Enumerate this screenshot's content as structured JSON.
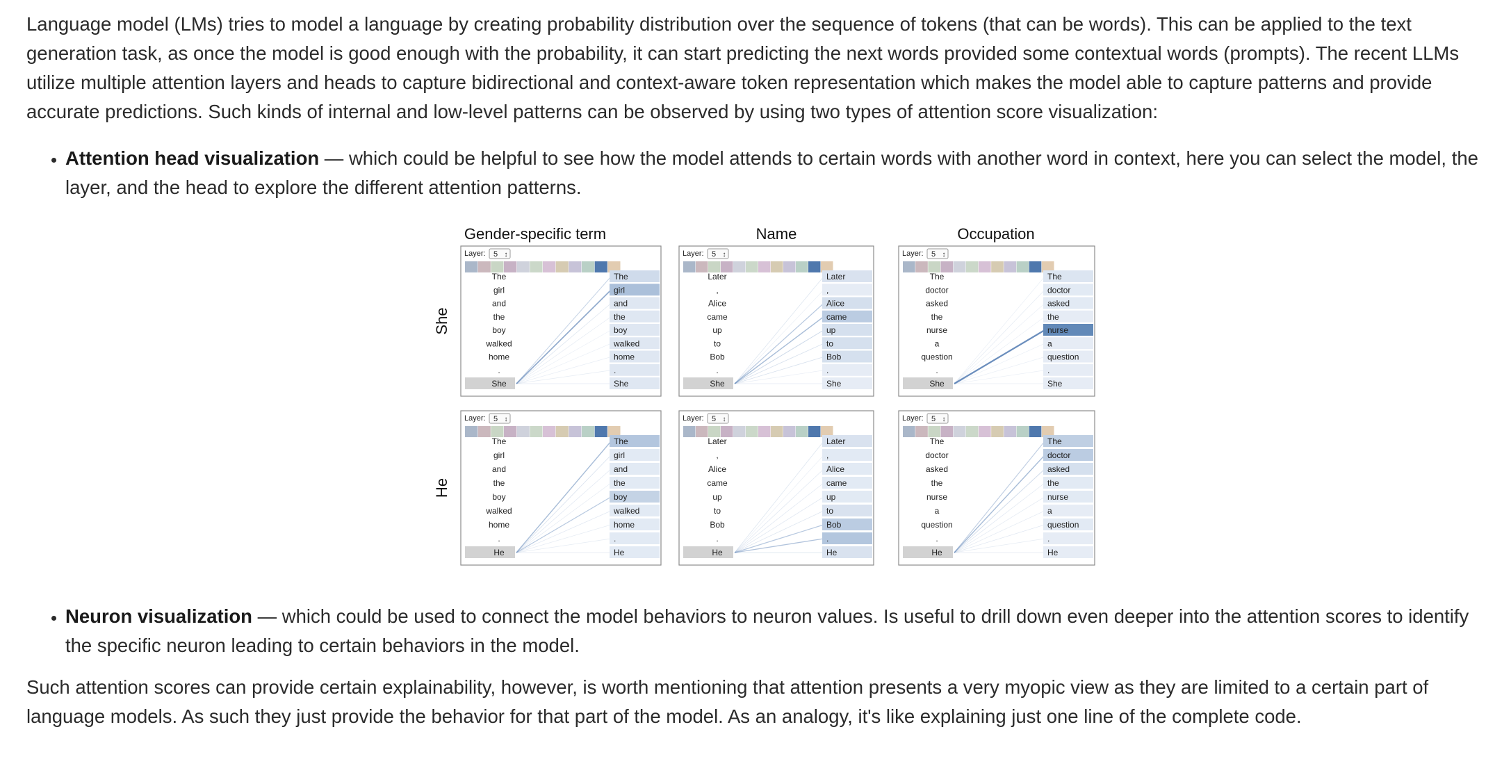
{
  "intro": "Language model (LMs) tries to model a language by creating probability distribution over the sequence of tokens (that can be words). This can be applied to the text generation task, as once the model is good enough with the probability, it can start predicting the next words provided some contextual words (prompts). The recent LLMs utilize multiple attention layers and heads to capture bidirectional and context-aware token representation which makes the model able to capture patterns and provide accurate predictions. Such kinds of internal and low-level patterns can be observed by using two types of attention score visualization:",
  "bullets": [
    {
      "term": "Attention head visualization",
      "text": " — which could be helpful to see how the model attends to certain words with another word in context, here you can select the model, the layer, and the head to explore the different attention patterns."
    },
    {
      "term": "Neuron visualization",
      "text": " — which could be used to connect the model behaviors to neuron values. Is useful to drill down even deeper into the attention scores to identify the specific neuron leading to certain behaviors in the model."
    }
  ],
  "outro": "Such attention scores can provide certain explainability, however, is worth mentioning that attention presents a very myopic view as they are limited to a certain part of language models. As such they just provide the behavior for that part of the model. As an analogy, it's like explaining just one line of the complete code.",
  "figure": {
    "columns": [
      "Gender-specific term",
      "Name",
      "Occupation"
    ],
    "rows": [
      "She",
      "He"
    ],
    "layer_label": "Layer:",
    "layer_value": "5",
    "spinner_glyph": "↕",
    "palette": [
      "#aab7c9",
      "#cbb8bd",
      "#c9d6c5",
      "#c7b2c5",
      "#cfd2dc",
      "#cbd8c9",
      "#d7c1d6",
      "#d6cbb2",
      "#c7c3d8",
      "#b9d0c6",
      "#4f78ad",
      "#e2ccb1"
    ],
    "highlight_color": "#4a77ad",
    "panels": [
      {
        "column": 0,
        "row": 0,
        "tokens": [
          "The",
          "girl",
          "and",
          "the",
          "boy",
          "walked",
          "home",
          ".",
          "She"
        ],
        "attention": [
          0.25,
          0.6,
          0.12,
          0.08,
          0.05,
          0.05,
          0.06,
          0.08,
          0.1
        ],
        "right_highlight": [
          0.18,
          0.4,
          0.08,
          0.08,
          0.08,
          0.08,
          0.08,
          0.08,
          0.08
        ]
      },
      {
        "column": 1,
        "row": 0,
        "tokens": [
          "Later",
          ",",
          "Alice",
          "came",
          "up",
          "to",
          "Bob",
          ".",
          "She"
        ],
        "attention": [
          0.12,
          0.05,
          0.35,
          0.45,
          0.22,
          0.15,
          0.15,
          0.06,
          0.1
        ],
        "right_highlight": [
          0.12,
          0.04,
          0.15,
          0.3,
          0.14,
          0.14,
          0.14,
          0.04,
          0.04
        ]
      },
      {
        "column": 2,
        "row": 0,
        "tokens": [
          "The",
          "doctor",
          "asked",
          "the",
          "nurse",
          "a",
          "question",
          ".",
          "She"
        ],
        "attention": [
          0.05,
          0.08,
          0.05,
          0.05,
          0.9,
          0.05,
          0.05,
          0.05,
          0.08
        ],
        "right_highlight": [
          0.1,
          0.06,
          0.06,
          0.04,
          0.85,
          0.04,
          0.04,
          0.04,
          0.04
        ]
      },
      {
        "column": 0,
        "row": 1,
        "tokens": [
          "The",
          "girl",
          "and",
          "the",
          "boy",
          "walked",
          "home",
          ".",
          "He"
        ],
        "attention": [
          0.45,
          0.15,
          0.1,
          0.08,
          0.35,
          0.1,
          0.08,
          0.08,
          0.1
        ],
        "right_highlight": [
          0.35,
          0.06,
          0.06,
          0.06,
          0.25,
          0.06,
          0.06,
          0.06,
          0.06
        ]
      },
      {
        "column": 1,
        "row": 1,
        "tokens": [
          "Later",
          ",",
          "Alice",
          "came",
          "up",
          "to",
          "Bob",
          ".",
          "He"
        ],
        "attention": [
          0.12,
          0.05,
          0.1,
          0.1,
          0.1,
          0.12,
          0.35,
          0.4,
          0.15
        ],
        "right_highlight": [
          0.12,
          0.06,
          0.06,
          0.06,
          0.06,
          0.12,
          0.3,
          0.35,
          0.12
        ]
      },
      {
        "column": 2,
        "row": 1,
        "tokens": [
          "The",
          "doctor",
          "asked",
          "the",
          "nurse",
          "a",
          "question",
          ".",
          "He"
        ],
        "attention": [
          0.3,
          0.45,
          0.2,
          0.1,
          0.08,
          0.08,
          0.1,
          0.08,
          0.1
        ],
        "right_highlight": [
          0.28,
          0.3,
          0.14,
          0.06,
          0.06,
          0.04,
          0.06,
          0.04,
          0.04
        ]
      }
    ]
  }
}
